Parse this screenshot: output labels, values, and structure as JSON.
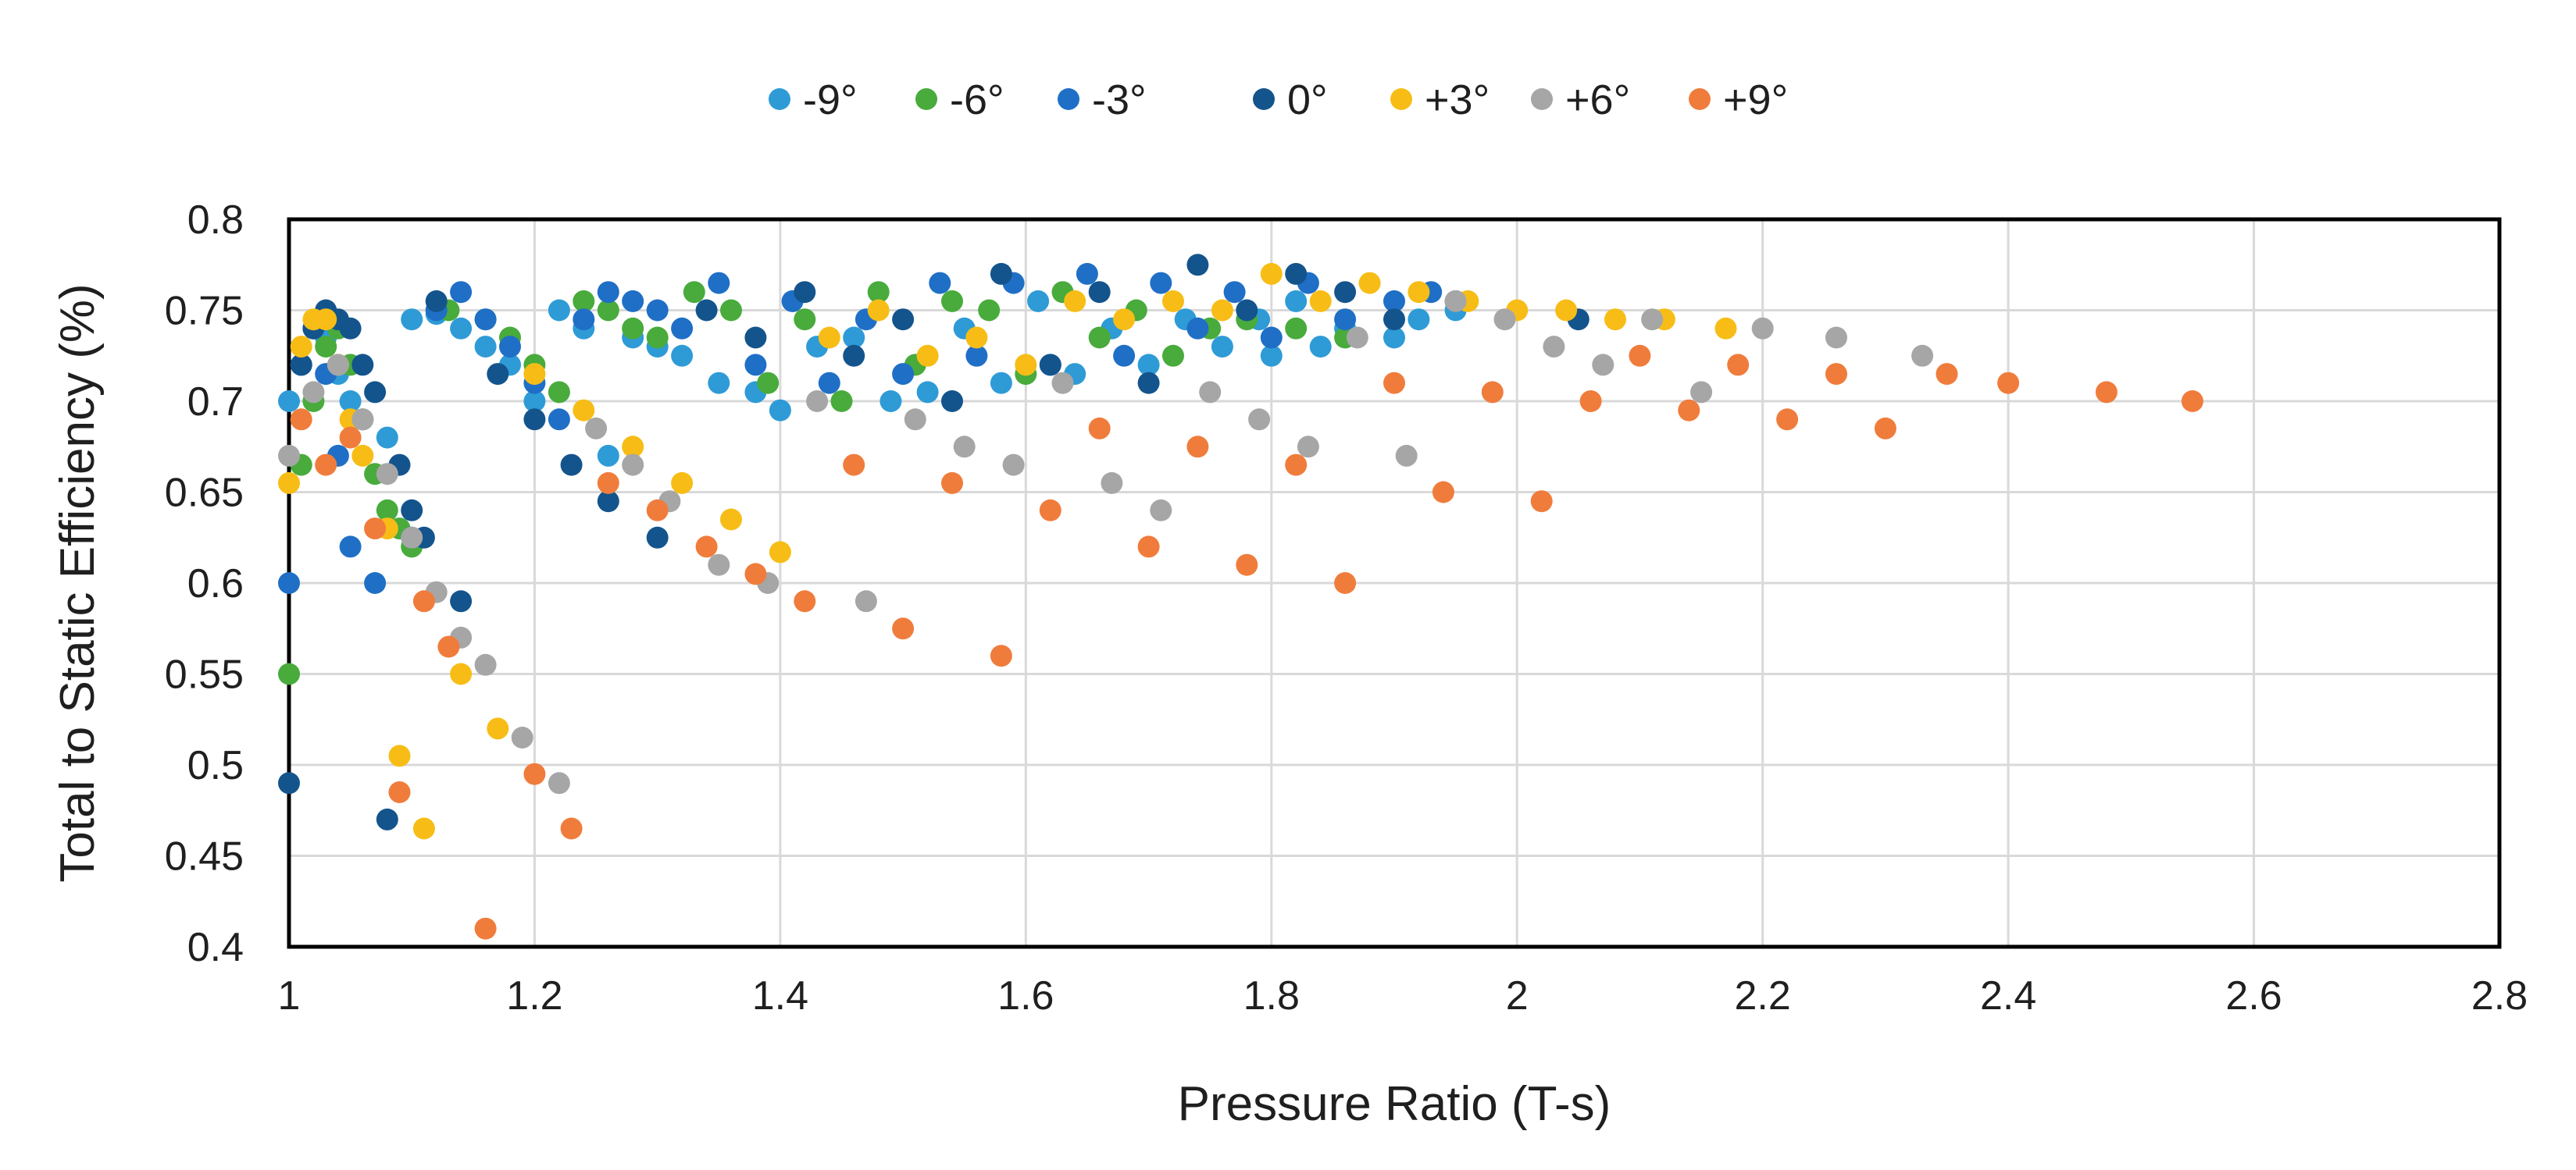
{
  "chart_data": {
    "type": "scatter",
    "title": "",
    "xlabel": "Pressure Ratio (T-s)",
    "ylabel": "Total to Static Efficiency (%)",
    "xlim": [
      1,
      2.8
    ],
    "ylim": [
      0.4,
      0.8
    ],
    "x_ticks": [
      1,
      1.2,
      1.4,
      1.6,
      1.8,
      2,
      2.2,
      2.4,
      2.6,
      2.8
    ],
    "x_tick_labels": [
      "1",
      "1.2",
      "1.4",
      "1.6",
      "1.8",
      "2",
      "2.2",
      "2.4",
      "2.6",
      "2.8"
    ],
    "y_ticks": [
      0.4,
      0.45,
      0.5,
      0.55,
      0.6,
      0.65,
      0.7,
      0.75,
      0.8
    ],
    "y_tick_labels": [
      "0.4",
      "0.45",
      "0.5",
      "0.55",
      "0.6",
      "0.65",
      "0.7",
      "0.75",
      "0.8"
    ],
    "grid": true,
    "legend_position": "top-center",
    "series": [
      {
        "name": "-9°",
        "color": "#2e9bd6",
        "x": [
          1.0,
          1.01,
          1.02,
          1.03,
          1.04,
          1.05,
          1.06,
          1.08,
          1.1,
          1.12,
          1.14,
          1.16,
          1.18,
          1.2,
          1.22,
          1.24,
          1.26,
          1.28,
          1.3,
          1.32,
          1.35,
          1.38,
          1.4,
          1.43,
          1.46,
          1.49,
          1.52,
          1.55,
          1.58,
          1.61,
          1.64,
          1.67,
          1.7,
          1.73,
          1.76,
          1.79,
          1.8,
          1.82,
          1.84,
          1.86,
          1.9,
          1.92,
          1.95
        ],
        "y": [
          0.7,
          0.72,
          0.74,
          0.735,
          0.715,
          0.7,
          0.69,
          0.68,
          0.745,
          0.748,
          0.74,
          0.73,
          0.72,
          0.7,
          0.75,
          0.74,
          0.67,
          0.735,
          0.73,
          0.725,
          0.71,
          0.705,
          0.695,
          0.73,
          0.735,
          0.7,
          0.705,
          0.74,
          0.71,
          0.755,
          0.715,
          0.74,
          0.72,
          0.745,
          0.73,
          0.745,
          0.725,
          0.755,
          0.73,
          0.74,
          0.735,
          0.745,
          0.75
        ]
      },
      {
        "name": "-6°",
        "color": "#48ab3c",
        "x": [
          1.0,
          1.01,
          1.02,
          1.03,
          1.04,
          1.05,
          1.06,
          1.07,
          1.08,
          1.09,
          1.1,
          1.13,
          1.16,
          1.18,
          1.2,
          1.22,
          1.24,
          1.26,
          1.28,
          1.3,
          1.33,
          1.36,
          1.39,
          1.42,
          1.45,
          1.48,
          1.51,
          1.54,
          1.57,
          1.6,
          1.63,
          1.66,
          1.69,
          1.72,
          1.75,
          1.78,
          1.82,
          1.86
        ],
        "y": [
          0.55,
          0.665,
          0.7,
          0.73,
          0.74,
          0.72,
          0.69,
          0.66,
          0.64,
          0.63,
          0.62,
          0.75,
          0.745,
          0.735,
          0.72,
          0.705,
          0.755,
          0.75,
          0.74,
          0.735,
          0.76,
          0.75,
          0.71,
          0.745,
          0.7,
          0.76,
          0.72,
          0.755,
          0.75,
          0.715,
          0.76,
          0.735,
          0.75,
          0.725,
          0.74,
          0.745,
          0.74,
          0.735
        ]
      },
      {
        "name": "-3°",
        "color": "#1f6fc6",
        "x": [
          1.0,
          1.01,
          1.02,
          1.03,
          1.04,
          1.05,
          1.07,
          1.1,
          1.12,
          1.14,
          1.16,
          1.18,
          1.2,
          1.22,
          1.24,
          1.26,
          1.28,
          1.3,
          1.32,
          1.35,
          1.38,
          1.41,
          1.44,
          1.47,
          1.5,
          1.53,
          1.56,
          1.59,
          1.62,
          1.65,
          1.68,
          1.71,
          1.74,
          1.77,
          1.8,
          1.83,
          1.86,
          1.9,
          1.93
        ],
        "y": [
          0.6,
          0.72,
          0.74,
          0.715,
          0.67,
          0.62,
          0.6,
          0.625,
          0.75,
          0.76,
          0.745,
          0.73,
          0.71,
          0.69,
          0.745,
          0.76,
          0.755,
          0.75,
          0.74,
          0.765,
          0.72,
          0.755,
          0.71,
          0.745,
          0.715,
          0.765,
          0.725,
          0.765,
          0.72,
          0.77,
          0.725,
          0.765,
          0.74,
          0.76,
          0.735,
          0.765,
          0.745,
          0.755,
          0.76
        ]
      },
      {
        "name": "0°",
        "color": "#14548c",
        "x": [
          1.0,
          1.01,
          1.02,
          1.03,
          1.04,
          1.05,
          1.06,
          1.07,
          1.08,
          1.09,
          1.1,
          1.11,
          1.12,
          1.14,
          1.17,
          1.2,
          1.23,
          1.26,
          1.3,
          1.34,
          1.38,
          1.42,
          1.46,
          1.5,
          1.54,
          1.58,
          1.62,
          1.66,
          1.7,
          1.74,
          1.78,
          1.82,
          1.86,
          1.9,
          1.95,
          2.05
        ],
        "y": [
          0.49,
          0.72,
          0.74,
          0.75,
          0.745,
          0.74,
          0.72,
          0.705,
          0.47,
          0.665,
          0.64,
          0.625,
          0.755,
          0.59,
          0.715,
          0.69,
          0.665,
          0.645,
          0.625,
          0.75,
          0.735,
          0.76,
          0.725,
          0.745,
          0.7,
          0.77,
          0.72,
          0.76,
          0.71,
          0.775,
          0.75,
          0.77,
          0.76,
          0.745,
          0.755,
          0.745
        ]
      },
      {
        "name": "+3°",
        "color": "#f7bd16",
        "x": [
          1.0,
          1.01,
          1.02,
          1.03,
          1.04,
          1.05,
          1.06,
          1.08,
          1.09,
          1.11,
          1.14,
          1.17,
          1.2,
          1.24,
          1.28,
          1.32,
          1.36,
          1.4,
          1.44,
          1.48,
          1.52,
          1.56,
          1.6,
          1.64,
          1.68,
          1.72,
          1.76,
          1.8,
          1.84,
          1.88,
          1.92,
          1.96,
          2.0,
          2.04,
          2.08,
          2.12,
          2.17
        ],
        "y": [
          0.655,
          0.73,
          0.745,
          0.745,
          0.72,
          0.69,
          0.67,
          0.63,
          0.505,
          0.465,
          0.55,
          0.52,
          0.715,
          0.695,
          0.675,
          0.655,
          0.635,
          0.617,
          0.735,
          0.75,
          0.725,
          0.735,
          0.72,
          0.755,
          0.745,
          0.755,
          0.75,
          0.77,
          0.755,
          0.765,
          0.76,
          0.755,
          0.75,
          0.75,
          0.745,
          0.745,
          0.74
        ]
      },
      {
        "name": "+6°",
        "color": "#a6a6a6",
        "x": [
          1.0,
          1.02,
          1.04,
          1.06,
          1.08,
          1.1,
          1.12,
          1.14,
          1.16,
          1.19,
          1.22,
          1.25,
          1.28,
          1.31,
          1.35,
          1.39,
          1.43,
          1.47,
          1.51,
          1.55,
          1.59,
          1.63,
          1.67,
          1.71,
          1.75,
          1.79,
          1.83,
          1.87,
          1.91,
          1.95,
          1.99,
          2.03,
          2.07,
          2.11,
          2.15,
          2.2,
          2.26,
          2.33
        ],
        "y": [
          0.67,
          0.705,
          0.72,
          0.69,
          0.66,
          0.625,
          0.595,
          0.57,
          0.555,
          0.515,
          0.49,
          0.685,
          0.665,
          0.645,
          0.61,
          0.6,
          0.7,
          0.59,
          0.69,
          0.675,
          0.665,
          0.71,
          0.655,
          0.64,
          0.705,
          0.69,
          0.675,
          0.735,
          0.67,
          0.755,
          0.745,
          0.73,
          0.72,
          0.745,
          0.705,
          0.74,
          0.735,
          0.725
        ]
      },
      {
        "name": "+9°",
        "color": "#f07c3c",
        "x": [
          1.01,
          1.03,
          1.05,
          1.07,
          1.09,
          1.11,
          1.13,
          1.16,
          1.2,
          1.23,
          1.26,
          1.3,
          1.34,
          1.38,
          1.42,
          1.46,
          1.5,
          1.54,
          1.58,
          1.62,
          1.66,
          1.7,
          1.74,
          1.78,
          1.82,
          1.86,
          1.9,
          1.94,
          1.98,
          2.02,
          2.06,
          2.1,
          2.14,
          2.18,
          2.22,
          2.26,
          2.3,
          2.35,
          2.4,
          2.48,
          2.55
        ],
        "y": [
          0.69,
          0.665,
          0.68,
          0.63,
          0.485,
          0.59,
          0.565,
          0.41,
          0.495,
          0.465,
          0.655,
          0.64,
          0.62,
          0.605,
          0.59,
          0.665,
          0.575,
          0.655,
          0.56,
          0.64,
          0.685,
          0.62,
          0.675,
          0.61,
          0.665,
          0.6,
          0.71,
          0.65,
          0.705,
          0.645,
          0.7,
          0.725,
          0.695,
          0.72,
          0.69,
          0.715,
          0.685,
          0.715,
          0.71,
          0.705,
          0.7
        ]
      }
    ]
  }
}
